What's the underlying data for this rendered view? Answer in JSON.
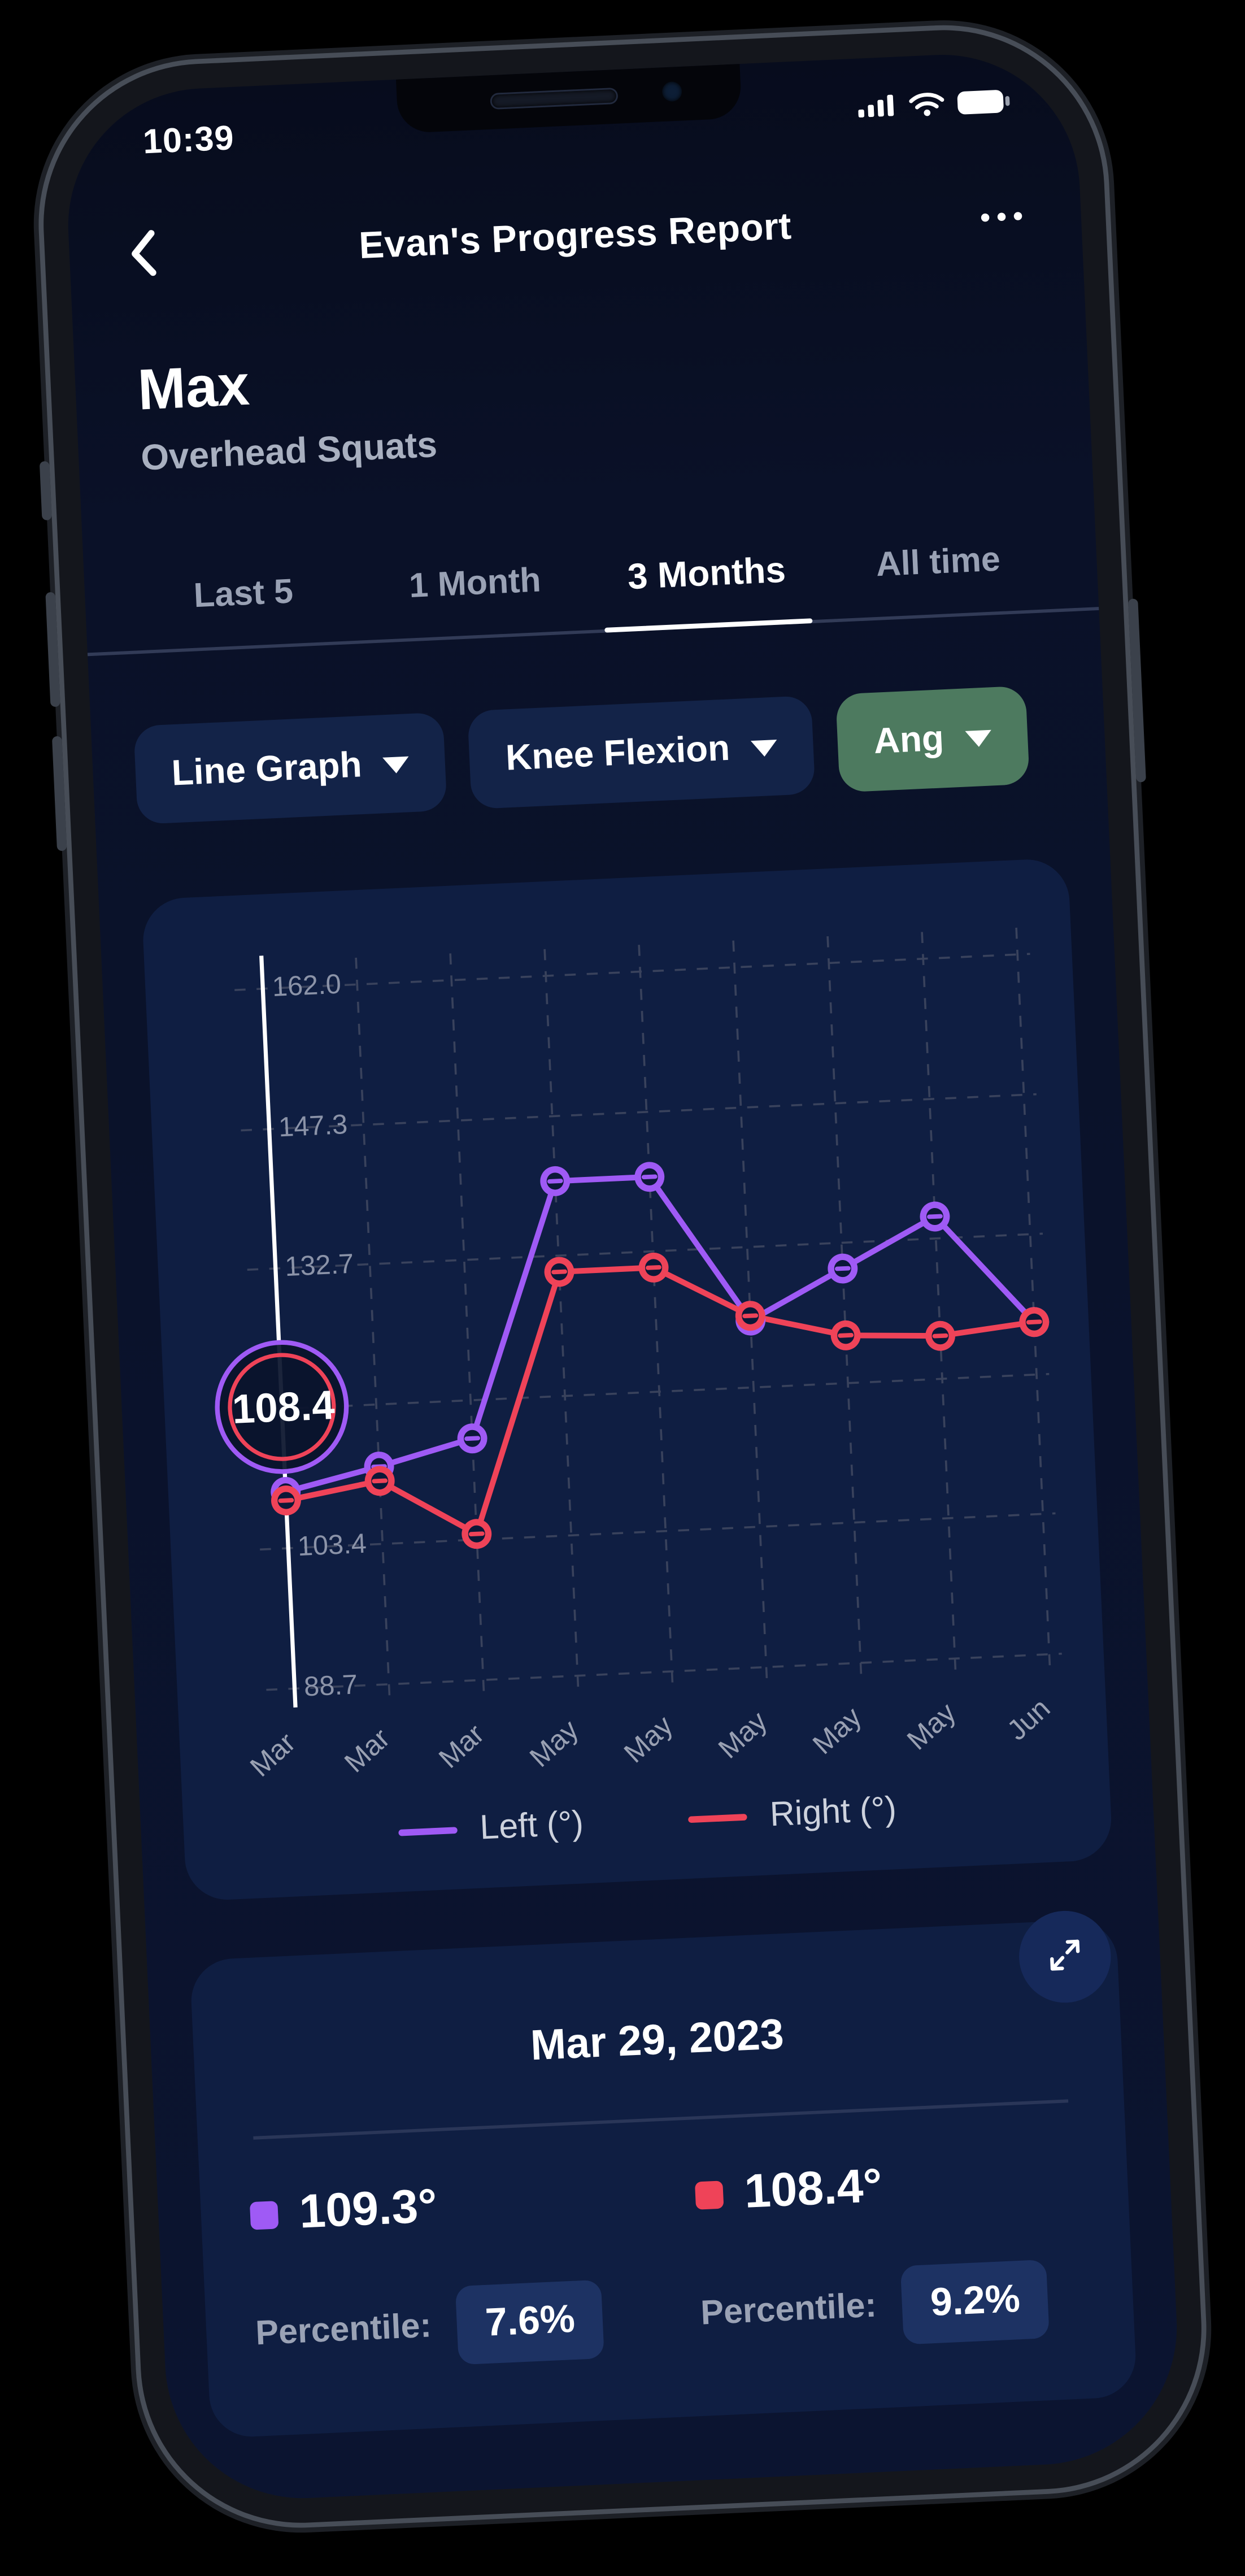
{
  "status_bar": {
    "time": "10:39"
  },
  "header": {
    "title": "Evan's Progress Report"
  },
  "page": {
    "title": "Max",
    "subtitle": "Overhead Squats"
  },
  "tabs": [
    {
      "label": "Last 5",
      "active": false
    },
    {
      "label": "1 Month",
      "active": false
    },
    {
      "label": "3 Months",
      "active": true
    },
    {
      "label": "All time",
      "active": false
    }
  ],
  "filters": {
    "graph_type": {
      "label": "Line Graph"
    },
    "metric": {
      "label": "Knee Flexion"
    },
    "unit": {
      "label": "Ang",
      "color": "#4d7a5f"
    }
  },
  "chart_data": {
    "type": "line",
    "x": [
      "Mar",
      "Mar",
      "Mar",
      "May",
      "May",
      "May",
      "May",
      "May",
      "Jun"
    ],
    "series": [
      {
        "name": "Left (°)",
        "color": "#9f5af5",
        "values": [
          109.3,
          111.5,
          114.0,
          140.5,
          140.5,
          125.0,
          130.0,
          135.0,
          123.5
        ]
      },
      {
        "name": "Right (°)",
        "color": "#ef4358",
        "values": [
          108.4,
          110.0,
          104.0,
          131.0,
          131.0,
          125.5,
          123.0,
          122.5,
          123.5
        ]
      }
    ],
    "ylim": [
      88.7,
      162.0
    ],
    "yticks": [
      {
        "value": 162.0,
        "label": "162.0"
      },
      {
        "value": 147.3,
        "label": "147.3"
      },
      {
        "value": 132.7,
        "label": "132.7"
      },
      {
        "value": 118.0,
        "label": ""
      },
      {
        "value": 103.4,
        "label": "103.4"
      },
      {
        "value": 88.7,
        "label": "88.7"
      }
    ],
    "selected_index": 0,
    "tooltip": "108.4",
    "grid": "dashed",
    "grid_color": "#39425c",
    "legend_position": "bottom"
  },
  "detail_card": {
    "date": "Mar 29, 2023",
    "metrics": [
      {
        "side": "left",
        "color": "#9f5af5",
        "value": "109.3°",
        "percentile_label": "Percentile:",
        "percentile": "7.6%"
      },
      {
        "side": "right",
        "color": "#ef4358",
        "value": "108.4°",
        "percentile_label": "Percentile:",
        "percentile": "9.2%"
      }
    ]
  }
}
